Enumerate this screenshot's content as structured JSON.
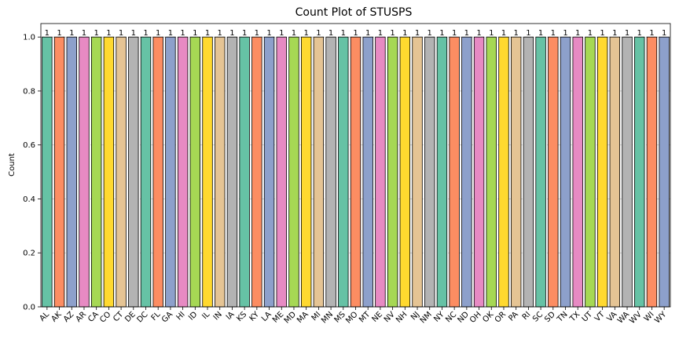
{
  "chart_data": {
    "type": "bar",
    "title": "Count Plot of STUSPS",
    "xlabel": "",
    "ylabel": "Count",
    "ylim": [
      0,
      1.05
    ],
    "yticks": [
      "0.0",
      "0.2",
      "0.4",
      "0.6",
      "0.8",
      "1.0"
    ],
    "grid": "y",
    "categories": [
      "AL",
      "AK",
      "AZ",
      "AR",
      "CA",
      "CO",
      "CT",
      "DE",
      "DC",
      "FL",
      "GA",
      "HI",
      "ID",
      "IL",
      "IN",
      "IA",
      "KS",
      "KY",
      "LA",
      "ME",
      "MD",
      "MA",
      "MI",
      "MN",
      "MS",
      "MO",
      "MT",
      "NE",
      "NV",
      "NH",
      "NJ",
      "NM",
      "NY",
      "NC",
      "ND",
      "OH",
      "OK",
      "OR",
      "PA",
      "RI",
      "SC",
      "SD",
      "TN",
      "TX",
      "UT",
      "VT",
      "VA",
      "WA",
      "WV",
      "WI",
      "WY"
    ],
    "values": [
      1,
      1,
      1,
      1,
      1,
      1,
      1,
      1,
      1,
      1,
      1,
      1,
      1,
      1,
      1,
      1,
      1,
      1,
      1,
      1,
      1,
      1,
      1,
      1,
      1,
      1,
      1,
      1,
      1,
      1,
      1,
      1,
      1,
      1,
      1,
      1,
      1,
      1,
      1,
      1,
      1,
      1,
      1,
      1,
      1,
      1,
      1,
      1,
      1,
      1,
      1
    ],
    "data_labels": [
      "1",
      "1",
      "1",
      "1",
      "1",
      "1",
      "1",
      "1",
      "1",
      "1",
      "1",
      "1",
      "1",
      "1",
      "1",
      "1",
      "1",
      "1",
      "1",
      "1",
      "1",
      "1",
      "1",
      "1",
      "1",
      "1",
      "1",
      "1",
      "1",
      "1",
      "1",
      "1",
      "1",
      "1",
      "1",
      "1",
      "1",
      "1",
      "1",
      "1",
      "1",
      "1",
      "1",
      "1",
      "1",
      "1",
      "1",
      "1",
      "1",
      "1",
      "1"
    ],
    "palette": [
      "#66c2a5",
      "#fc8d62",
      "#8da0cb",
      "#e78ac3",
      "#a6d854",
      "#ffd92f",
      "#e5c494",
      "#b3b3b3"
    ]
  }
}
